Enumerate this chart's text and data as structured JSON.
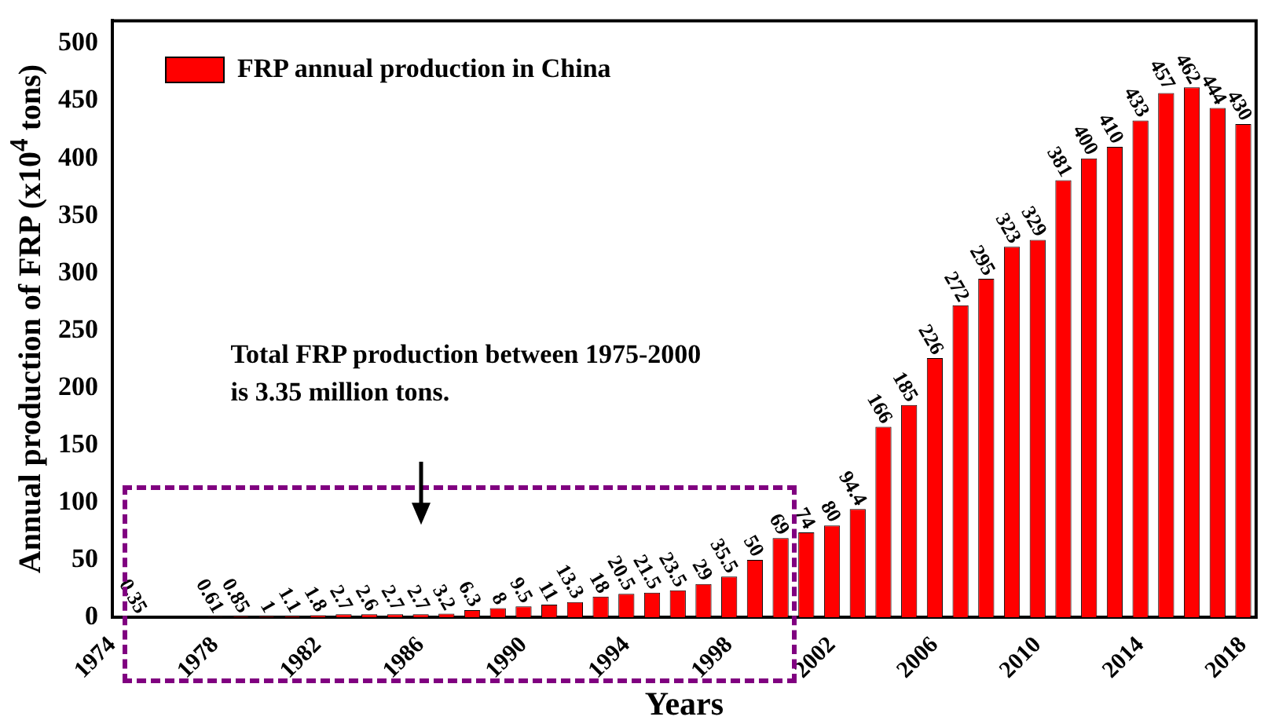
{
  "chart_data": {
    "type": "bar",
    "xlabel": "Years",
    "ylabel": "Annual production of FRP (x10$^{4}$ tons)",
    "annotations": [
      "Total FRP production between 1975-2000 is 3.35 million tons."
    ],
    "x": [
      1975,
      1976,
      1977,
      1978,
      1979,
      1980,
      1981,
      1982,
      1983,
      1984,
      1985,
      1986,
      1987,
      1988,
      1989,
      1990,
      1991,
      1992,
      1993,
      1994,
      1995,
      1996,
      1997,
      1998,
      1999,
      2000,
      2001,
      2002,
      2003,
      2004,
      2005,
      2006,
      2007,
      2008,
      2009,
      2010,
      2011,
      2012,
      2013,
      2014,
      2015,
      2016,
      2017,
      2018
    ],
    "series": [
      {
        "name": "FRP annual production in China",
        "color": "#ff0000",
        "values": [
          0.35,
          null,
          null,
          0.61,
          0.85,
          1,
          1.1,
          1.8,
          2.7,
          2.6,
          2.7,
          2.7,
          3.2,
          6.3,
          8,
          9.5,
          11,
          13.3,
          18,
          20.5,
          21.5,
          23.5,
          29,
          35.5,
          50,
          69,
          74,
          80,
          94.4,
          166,
          185,
          226,
          272,
          295,
          323,
          329,
          381,
          400,
          410,
          433,
          457,
          462,
          444,
          430
        ]
      }
    ],
    "data_labels": true,
    "legend": "top left",
    "xlim": [
      1974,
      2018.5
    ],
    "xticks": [
      1974,
      1978,
      1982,
      1986,
      1990,
      1994,
      1998,
      2002,
      2006,
      2010,
      2014,
      2018
    ],
    "ylim": [
      0,
      520
    ],
    "yticks": [
      0,
      50,
      100,
      150,
      200,
      250,
      300,
      350,
      400,
      450,
      500
    ],
    "grid": false
  }
}
